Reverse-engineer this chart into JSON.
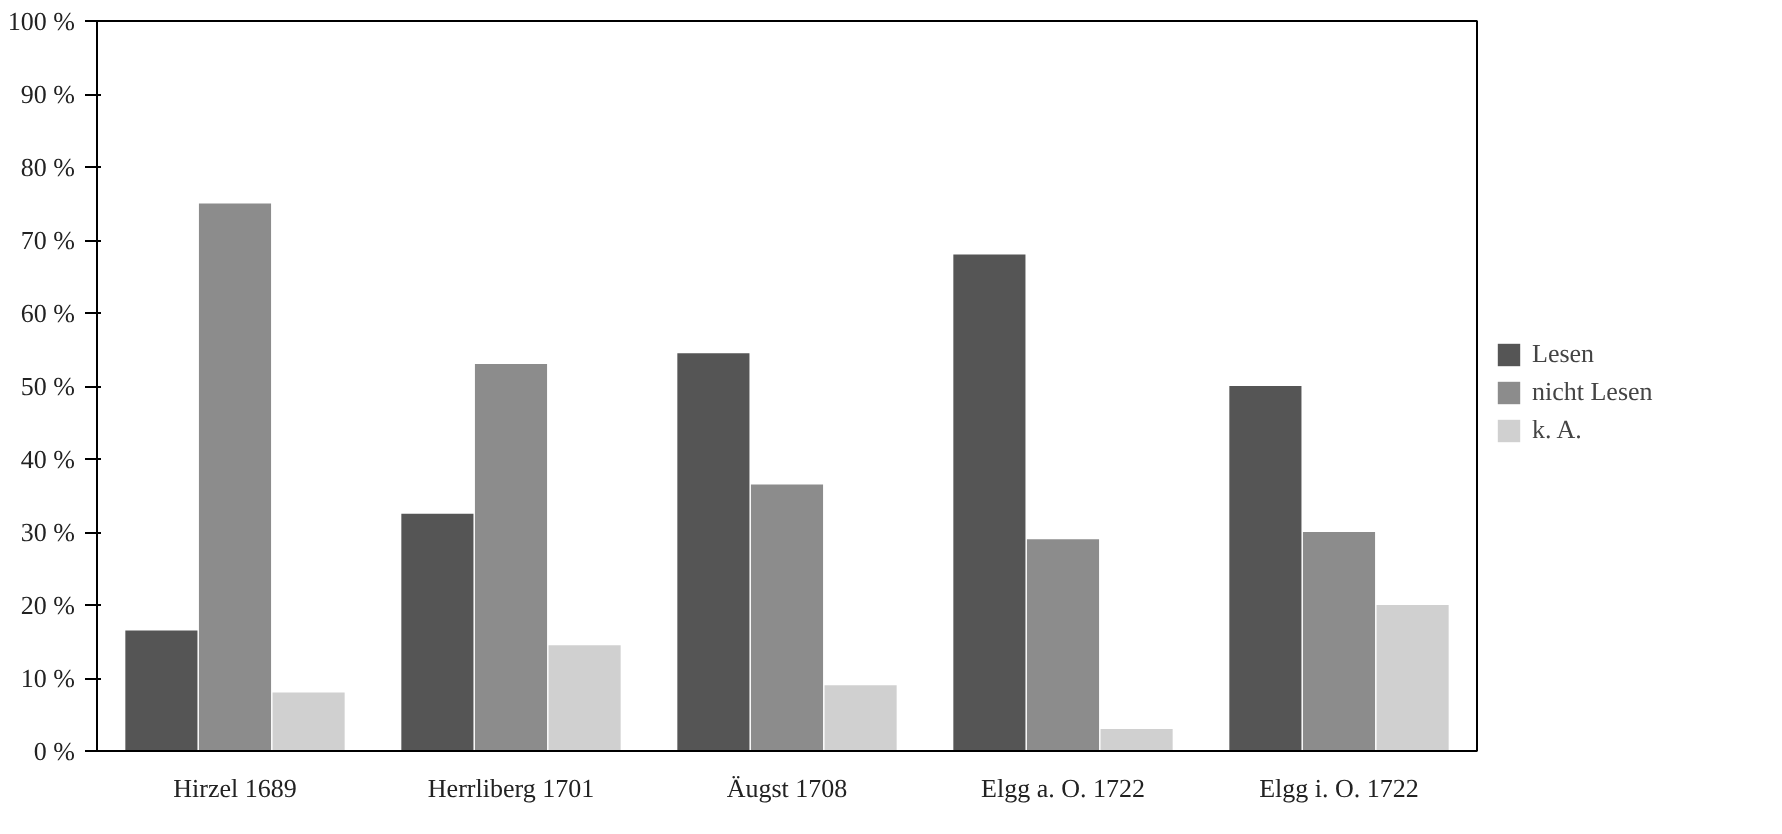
{
  "chart_data": {
    "type": "bar",
    "categories": [
      "Hirzel 1689",
      "Herrliberg 1701",
      "Äugst 1708",
      "Elgg a. O. 1722",
      "Elgg i. O. 1722"
    ],
    "series": [
      {
        "name": "Lesen",
        "color": "#555555",
        "values": [
          16.5,
          32.5,
          54.5,
          68,
          50
        ]
      },
      {
        "name": "nicht Lesen",
        "color": "#8c8c8c",
        "values": [
          75,
          53,
          36.5,
          29,
          30
        ]
      },
      {
        "name": "k. A.",
        "color": "#d0d0d0",
        "values": [
          8,
          14.5,
          9,
          3,
          20
        ]
      }
    ],
    "ylim": [
      0,
      100
    ],
    "yticks": [
      {
        "value": 0,
        "label": "0 %"
      },
      {
        "value": 10,
        "label": "10 %"
      },
      {
        "value": 20,
        "label": "20 %"
      },
      {
        "value": 30,
        "label": "30 %"
      },
      {
        "value": 40,
        "label": "40 %"
      },
      {
        "value": 50,
        "label": "50 %"
      },
      {
        "value": 60,
        "label": "60 %"
      },
      {
        "value": 70,
        "label": "70 %"
      },
      {
        "value": 80,
        "label": "80 %"
      },
      {
        "value": 90,
        "label": "90 %"
      },
      {
        "value": 100,
        "label": "100 %"
      }
    ],
    "grid": false,
    "legend": "right"
  }
}
